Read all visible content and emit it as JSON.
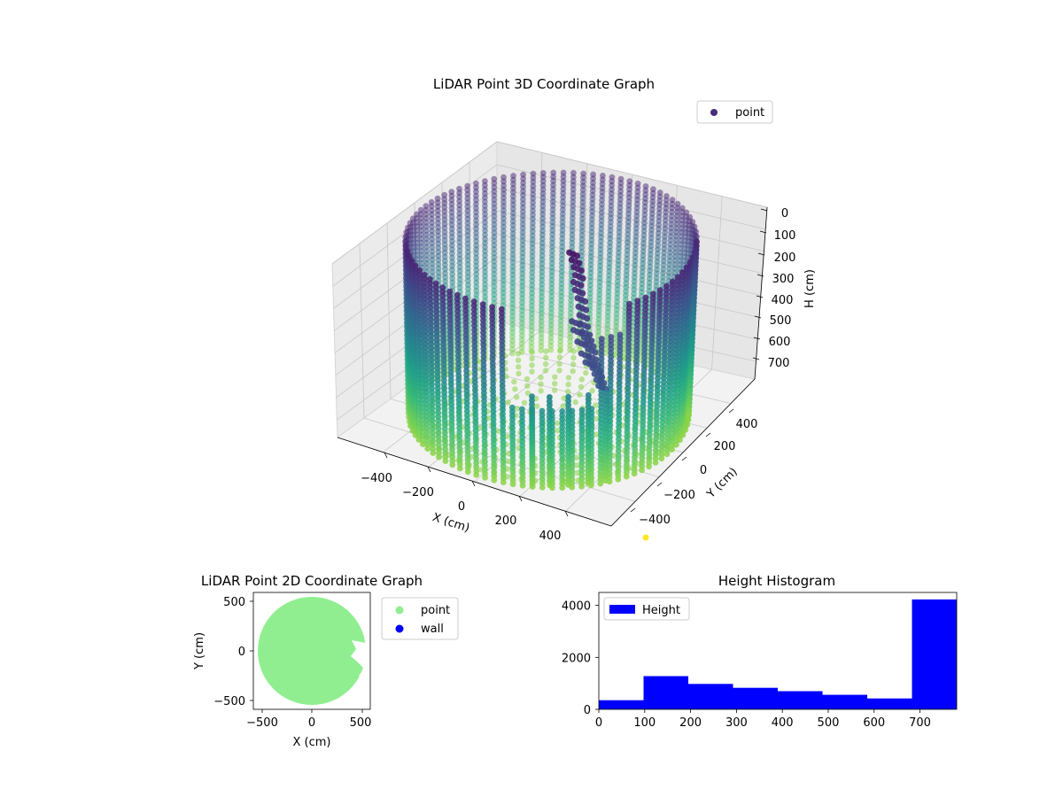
{
  "chart_data": [
    {
      "type": "scatter",
      "projection": "3d",
      "title": "LiDAR Point 3D Coordinate Graph",
      "xlabel": "X (cm)",
      "ylabel": "Y (cm)",
      "zlabel": "H (cm)",
      "x_ticks": [
        "−400",
        "−200",
        "0",
        "200",
        "400"
      ],
      "y_ticks": [
        "−400",
        "−200",
        "0",
        "200",
        "400"
      ],
      "z_ticks": [
        "0",
        "100",
        "200",
        "300",
        "400",
        "500",
        "600",
        "700"
      ],
      "z_inverted": true,
      "grid": true,
      "legend": {
        "placement": "top-right",
        "entries": [
          "point"
        ]
      },
      "series": [
        {
          "name": "point",
          "shape": "cylindrical wall",
          "radius": 550,
          "height_range": [
            0,
            780
          ],
          "colormap": "viridis",
          "color": "#472d7b"
        }
      ],
      "outlier": {
        "x": 450,
        "y": -520,
        "h": 0,
        "color": "#fde725"
      }
    },
    {
      "type": "scatter",
      "title": "LiDAR Point 2D Coordinate Graph",
      "xlabel": "X (cm)",
      "ylabel": "Y (cm)",
      "x_ticks": [
        "−500",
        "0",
        "500"
      ],
      "y_ticks": [
        "−500",
        "0",
        "500"
      ],
      "xlim": [
        -580,
        580
      ],
      "ylim": [
        -580,
        580
      ],
      "legend": {
        "placement": "outside-right",
        "entries": [
          "point",
          "wall"
        ]
      },
      "series": [
        {
          "name": "point",
          "color": "#90ee90",
          "shape": "filled disc",
          "center": [
            0,
            0
          ],
          "radius": 550
        },
        {
          "name": "wall",
          "color": "#0000ff"
        }
      ]
    },
    {
      "type": "bar",
      "title": "Height Histogram",
      "xlabel": "",
      "ylabel": "",
      "x_ticks": [
        "0",
        "100",
        "200",
        "300",
        "400",
        "500",
        "600",
        "700"
      ],
      "y_ticks": [
        "0",
        "2000",
        "4000"
      ],
      "xlim": [
        0,
        780
      ],
      "ylim": [
        0,
        4500
      ],
      "bin_edges": [
        0,
        97.5,
        195,
        292.5,
        390,
        487.5,
        585,
        682.5,
        780
      ],
      "values": [
        350,
        1280,
        980,
        830,
        700,
        560,
        420,
        4230
      ],
      "color": "#0000ff",
      "legend": {
        "placement": "top-left",
        "entries": [
          "Height"
        ]
      }
    }
  ]
}
